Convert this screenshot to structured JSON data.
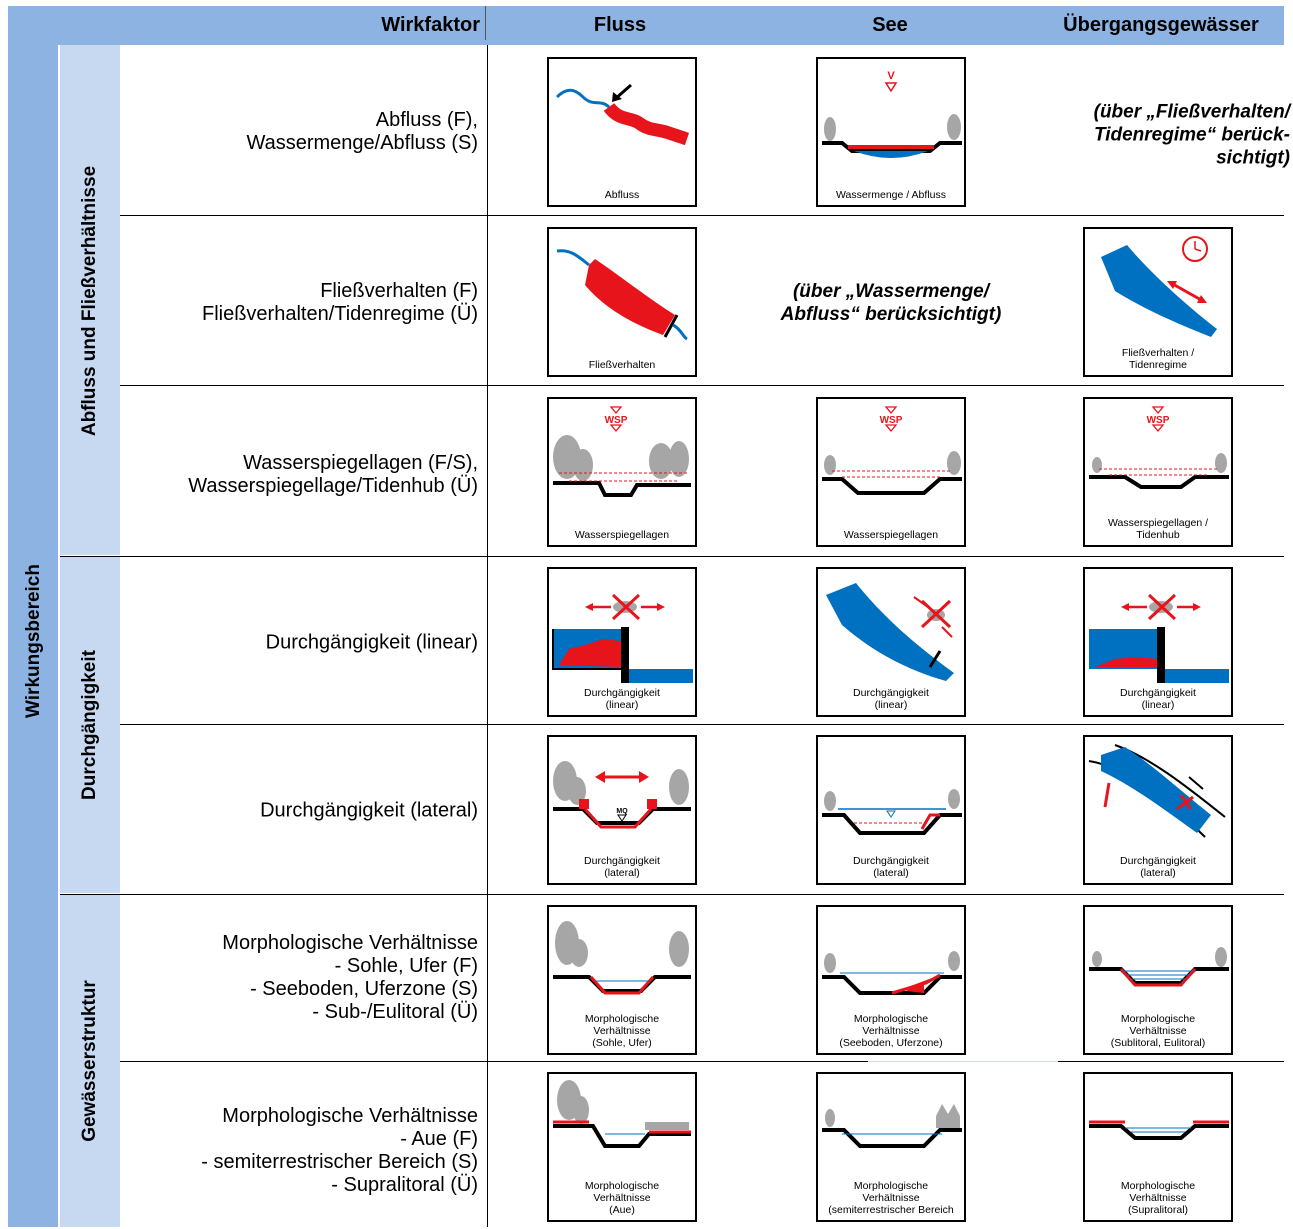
{
  "header": {
    "wirkfaktor": "Wirkfaktor",
    "fluss": "Fluss",
    "see": "See",
    "uebergang": "Übergangsgewässer"
  },
  "side": {
    "main": "Wirkungsbereich",
    "groups": [
      "Abfluss und Fließverhältnisse",
      "Durchgängigkeit",
      "Gewässerstruktur"
    ]
  },
  "rows": [
    {
      "wirkfaktor": [
        "Abfluss (F),",
        "Wassermenge/Abfluss (S)"
      ],
      "fluss_caption": [
        "Abfluss"
      ],
      "see_caption": [
        "Wassermenge / Abfluss"
      ],
      "uebergang_note": [
        "(über „Fließverhalten/",
        "Tidenregime“ berück-",
        "sichtigt)"
      ]
    },
    {
      "wirkfaktor": [
        "Fließverhalten (F)",
        "Fließverhalten/Tidenregime (Ü)"
      ],
      "fluss_caption": [
        "Fließverhalten"
      ],
      "see_note": [
        "(über „Wassermenge/",
        "Abfluss“ berücksichtigt)"
      ],
      "uebergang_caption": [
        "Fließverhalten /",
        "Tidenregime"
      ]
    },
    {
      "wirkfaktor": [
        "Wasserspiegellagen (F/S),",
        "Wasserspiegellage/Tidenhub (Ü)"
      ],
      "fluss_caption": [
        "Wasserspiegellagen"
      ],
      "see_caption": [
        "Wasserspiegellagen"
      ],
      "uebergang_caption": [
        "Wasserspiegellagen /",
        "Tidenhub"
      ]
    },
    {
      "wirkfaktor": [
        "Durchgängigkeit (linear)"
      ],
      "fluss_caption": [
        "Durchgängigkeit",
        "(linear)"
      ],
      "see_caption": [
        "Durchgängigkeit",
        "(linear)"
      ],
      "uebergang_caption": [
        "Durchgängigkeit",
        "(linear)"
      ]
    },
    {
      "wirkfaktor": [
        "Durchgängigkeit (lateral)"
      ],
      "fluss_caption": [
        "Durchgängigkeit",
        "(lateral)"
      ],
      "see_caption": [
        "Durchgängigkeit",
        "(lateral)"
      ],
      "uebergang_caption": [
        "Durchgängigkeit",
        "(lateral)"
      ]
    },
    {
      "wirkfaktor": [
        "Morphologische Verhältnisse",
        "- Sohle, Ufer (F)",
        "- Seeboden, Uferzone (S)",
        "- Sub-/Eulitoral (Ü)"
      ],
      "fluss_caption": [
        "Morphologische",
        "Verhältnisse",
        "(Sohle, Ufer)"
      ],
      "see_caption": [
        "Morphologische",
        "Verhältnisse",
        "(Seeboden, Uferzone)"
      ],
      "uebergang_caption": [
        "Morphologische",
        "Verhältnisse",
        "(Sublitoral, Eulitoral)"
      ]
    },
    {
      "wirkfaktor": [
        "Morphologische Verhältnisse",
        "- Aue (F)",
        "- semiterrestrischer Bereich (S)",
        "- Supralitoral (Ü)"
      ],
      "fluss_caption": [
        "Morphologische",
        "Verhältnisse",
        "(Aue)"
      ],
      "see_caption": [
        "Morphologische",
        "Verhältnisse",
        "(semiterrestrischer Bereich"
      ],
      "uebergang_caption": [
        "Morphologische",
        "Verhältnisse",
        "(Supralitoral)"
      ]
    }
  ],
  "icon_labels": {
    "wsp": "WSP",
    "v": "V",
    "mq": "MQ"
  },
  "colors": {
    "header_blue": "#8db3e2",
    "light_blue": "#c6d9f1",
    "water_blue": "#0070c0",
    "red": "#e8141b",
    "tree_gray": "#a6a6a6"
  }
}
